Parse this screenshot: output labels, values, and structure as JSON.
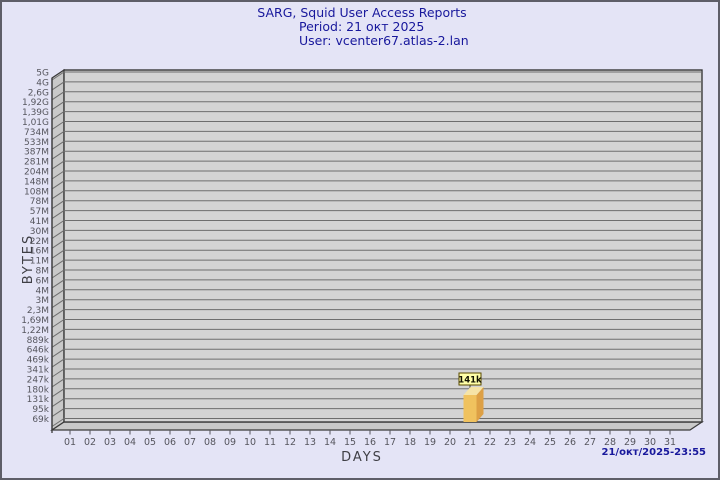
{
  "window": {
    "background": "#e4e4f6",
    "border_color": "#5e5e68"
  },
  "header": {
    "title": "SARG, Squid User Access Reports",
    "period_line": "Period: 21 окт 2025",
    "user_line": "User: vcenter67.atlas-2.lan",
    "text_color": "#18189c"
  },
  "footer": {
    "generated": "21/окт/2025-23:55"
  },
  "chart_data": {
    "type": "bar",
    "title": "SARG, Squid User Access Reports",
    "subtitle": [
      "Period: 21 окт 2025",
      "User: vcenter67.atlas-2.lan"
    ],
    "xlabel": "DAYS",
    "ylabel": "BYTES",
    "scale": "logarithmic",
    "grid": true,
    "style": "3d",
    "y_ticks": [
      "5G",
      "4G",
      "2,6G",
      "1,92G",
      "1,39G",
      "1,01G",
      "734M",
      "533M",
      "387M",
      "281M",
      "204M",
      "148M",
      "108M",
      "78M",
      "57M",
      "41M",
      "30M",
      "22M",
      "16M",
      "11M",
      "8M",
      "6M",
      "4M",
      "3M",
      "2,3M",
      "1,69M",
      "1,22M",
      "889k",
      "646k",
      "469k",
      "341k",
      "247k",
      "180k",
      "131k",
      "95k",
      "69k"
    ],
    "x_ticks": [
      "01",
      "02",
      "03",
      "04",
      "05",
      "06",
      "07",
      "08",
      "09",
      "10",
      "11",
      "12",
      "13",
      "14",
      "15",
      "16",
      "17",
      "18",
      "19",
      "20",
      "21",
      "22",
      "23",
      "24",
      "25",
      "26",
      "27",
      "28",
      "29",
      "30",
      "31"
    ],
    "bars": [
      {
        "x": "21",
        "label": "141k"
      }
    ],
    "colors": {
      "plot_face": "#d4d4d4",
      "plot_wall": "#c9c9c9",
      "grid_line": "#6e6e6e",
      "frame_line": "#3a3a3a",
      "axis_text": "#56565e",
      "axis_title_text": "#3f3f45",
      "bar_front": "#f0c25e",
      "bar_side": "#dda045",
      "bar_top": "#f6e4a6",
      "bar_label_bg": "#ffffa8",
      "bar_label_border": "#5a4a00",
      "bar_label_text": "#111100"
    }
  }
}
